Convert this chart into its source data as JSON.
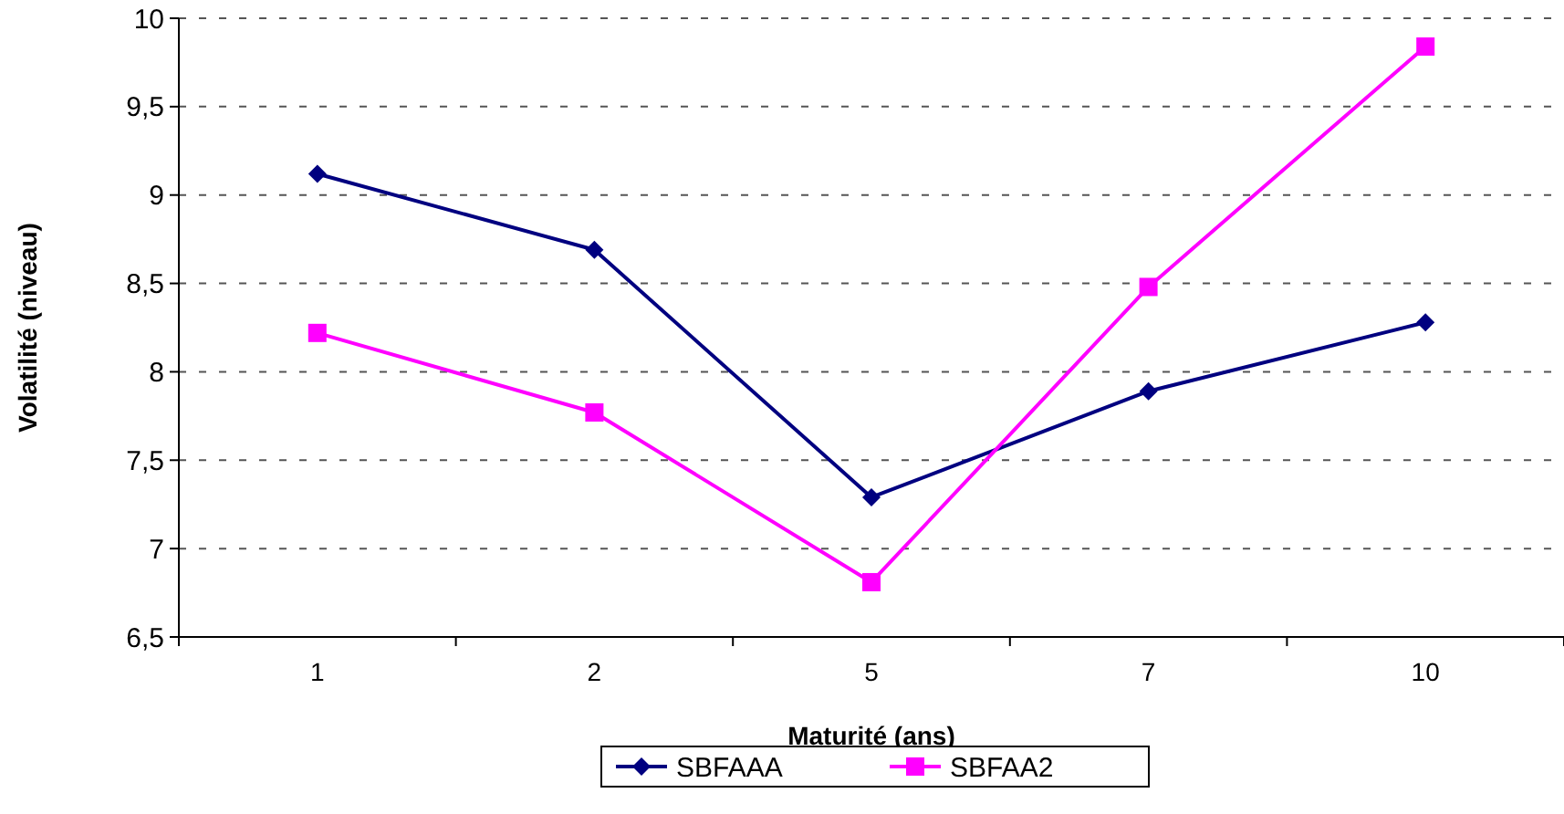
{
  "chart_data": {
    "type": "line",
    "xlabel": "Maturité (ans)",
    "ylabel": "Volatilité (niveau)",
    "categories": [
      "1",
      "2",
      "5",
      "7",
      "10"
    ],
    "series": [
      {
        "name": "SBFAAA",
        "color": "#000080",
        "marker": "diamond",
        "values": [
          9.12,
          8.69,
          7.29,
          7.89,
          8.28
        ]
      },
      {
        "name": "SBFAA2",
        "color": "#ff00ff",
        "marker": "square",
        "values": [
          8.22,
          7.77,
          6.81,
          8.48,
          9.84
        ]
      }
    ],
    "ylim": [
      6.5,
      10
    ],
    "yticks": [
      {
        "value": 6.5,
        "label": "6,5"
      },
      {
        "value": 7,
        "label": "7"
      },
      {
        "value": 7.5,
        "label": "7,5"
      },
      {
        "value": 8,
        "label": "8"
      },
      {
        "value": 8.5,
        "label": "8,5"
      },
      {
        "value": 9,
        "label": "9"
      },
      {
        "value": 9.5,
        "label": "9,5"
      },
      {
        "value": 10,
        "label": "10"
      }
    ],
    "grid": "y",
    "legend": "bottom",
    "line_style": "solid"
  }
}
